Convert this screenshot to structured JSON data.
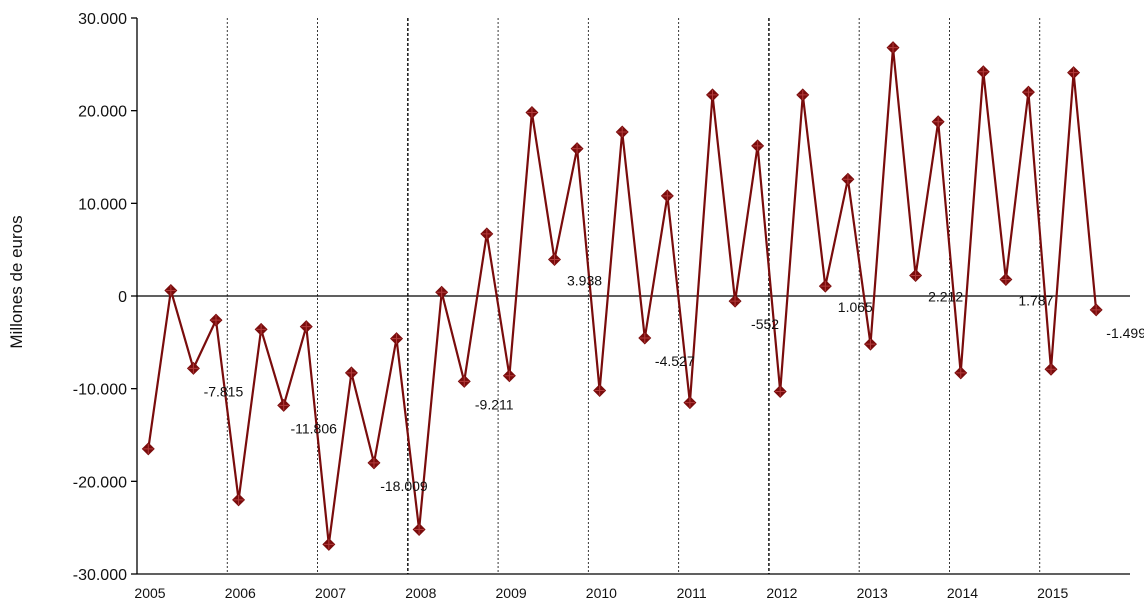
{
  "chart_data": {
    "type": "line",
    "title": "",
    "xlabel": "",
    "ylabel": "Millones de euros",
    "ylim": [
      -30000,
      30000
    ],
    "y_ticks": [
      30000,
      20000,
      10000,
      0,
      -10000,
      -20000,
      -30000
    ],
    "y_tick_labels": [
      "30.000",
      "20.000",
      "10.000",
      "0",
      "-10.000",
      "-20.000",
      "-30.000"
    ],
    "x_range": [
      2005,
      2016
    ],
    "x_tick_labels": [
      "2005",
      "2006",
      "2007",
      "2008",
      "2009",
      "2010",
      "2011",
      "2012",
      "2013",
      "2014",
      "2015"
    ],
    "year_dividers": [
      2006,
      2007,
      2008,
      2009,
      2010,
      2011,
      2012,
      2013,
      2014,
      2015
    ],
    "emphasized_dividers": [
      2008,
      2012
    ],
    "grid": false,
    "legend": "none",
    "colors": {
      "series": "#7a0c0c",
      "axis": "#000000",
      "divider": "#222222"
    },
    "series": [
      {
        "quarters": [
          2005.0,
          2005.25,
          2005.5,
          2005.75,
          2006.0,
          2006.25,
          2006.5,
          2006.75,
          2007.0,
          2007.25,
          2007.5,
          2007.75,
          2008.0,
          2008.25,
          2008.5,
          2008.75,
          2009.0,
          2009.25,
          2009.5,
          2009.75,
          2010.0,
          2010.25,
          2010.5,
          2010.75,
          2011.0,
          2011.25,
          2011.5,
          2011.75,
          2012.0,
          2012.25,
          2012.5,
          2012.75,
          2013.0,
          2013.25,
          2013.5,
          2013.75,
          2014.0,
          2014.25,
          2014.5,
          2014.75,
          2015.0,
          2015.25,
          2015.5
        ],
        "values": [
          -16500,
          600,
          -7815,
          -2600,
          -22000,
          -3600,
          -11806,
          -3300,
          -26800,
          -8300,
          -18009,
          -4600,
          -25200,
          400,
          -9211,
          6700,
          -8600,
          19800,
          3938,
          15900,
          -10200,
          17700,
          -4527,
          10800,
          -11500,
          21700,
          -552,
          16200,
          -10300,
          21700,
          1065,
          12600,
          -5200,
          26800,
          2212,
          18800,
          -8300,
          24200,
          1787,
          22000,
          -7900,
          24100,
          -1499
        ]
      }
    ],
    "annotations": [
      {
        "text": "-7.815",
        "point": 2
      },
      {
        "text": "-11.806",
        "point": 6
      },
      {
        "text": "-18.009",
        "point": 10
      },
      {
        "text": "-9.211",
        "point": 14
      },
      {
        "text": "3.938",
        "point": 18
      },
      {
        "text": "-4.527",
        "point": 22
      },
      {
        "text": "-552",
        "point": 26
      },
      {
        "text": "1.065",
        "point": 30
      },
      {
        "text": "2.212",
        "point": 34
      },
      {
        "text": "1.787",
        "point": 38
      },
      {
        "text": "-1.499",
        "point": 42
      }
    ]
  }
}
